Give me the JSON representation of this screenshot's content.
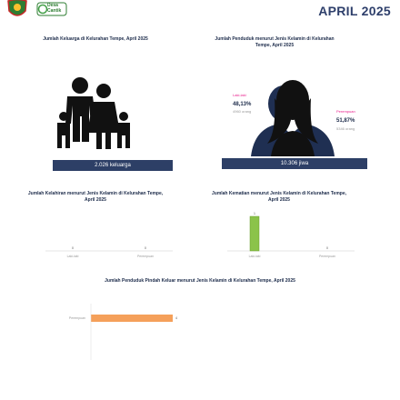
{
  "header": {
    "month": "APRIL 2025",
    "logo_text": [
      "Desa",
      "Cantik"
    ]
  },
  "panel_keluarga": {
    "title": "Jumlah Keluarga di Kelurahan Tempe, April 2025",
    "count_label": "2.026 keluarga"
  },
  "panel_penduduk": {
    "title": "Jumlah Penduduk menurut Jenis Kelamin di Kelurahan Tempe, April 2025",
    "male_label": "Laki-laki",
    "male_pct": "48,13%",
    "male_count": "4960 orang",
    "female_label": "Perempuan",
    "female_pct": "51,87%",
    "female_count": "5346 orang",
    "count_label": "10.306 jiwa"
  },
  "chart_kelahiran": {
    "title": "Jumlah Kelahiran menurut Jenis Kelamin di Kelurahan Tempe, April 2025"
  },
  "chart_kematian": {
    "title": "Jumlah Kematian menurut Jenis Kelamin di Kelurahan Tempe, April 2025"
  },
  "chart_pindah": {
    "title": "Jumlah Penduduk Pindah Keluar menurut Jenis Kelamin di Kelurahan Tempe, April 2025"
  },
  "colors": {
    "navy": "#2d3f66",
    "green": "#8bc34a",
    "orange": "#f5a05a",
    "pink": "#e91e8c"
  },
  "chart_data": [
    {
      "type": "bar",
      "categories": [
        "Laki-laki",
        "Perempuan"
      ],
      "values": [
        0,
        0
      ]
    },
    {
      "type": "bar",
      "categories": [
        "Laki-laki",
        "Perempuan"
      ],
      "values": [
        1,
        0
      ]
    },
    {
      "type": "bar",
      "orientation": "horizontal",
      "categories": [
        "Perempuan"
      ],
      "values": [
        4
      ]
    }
  ]
}
